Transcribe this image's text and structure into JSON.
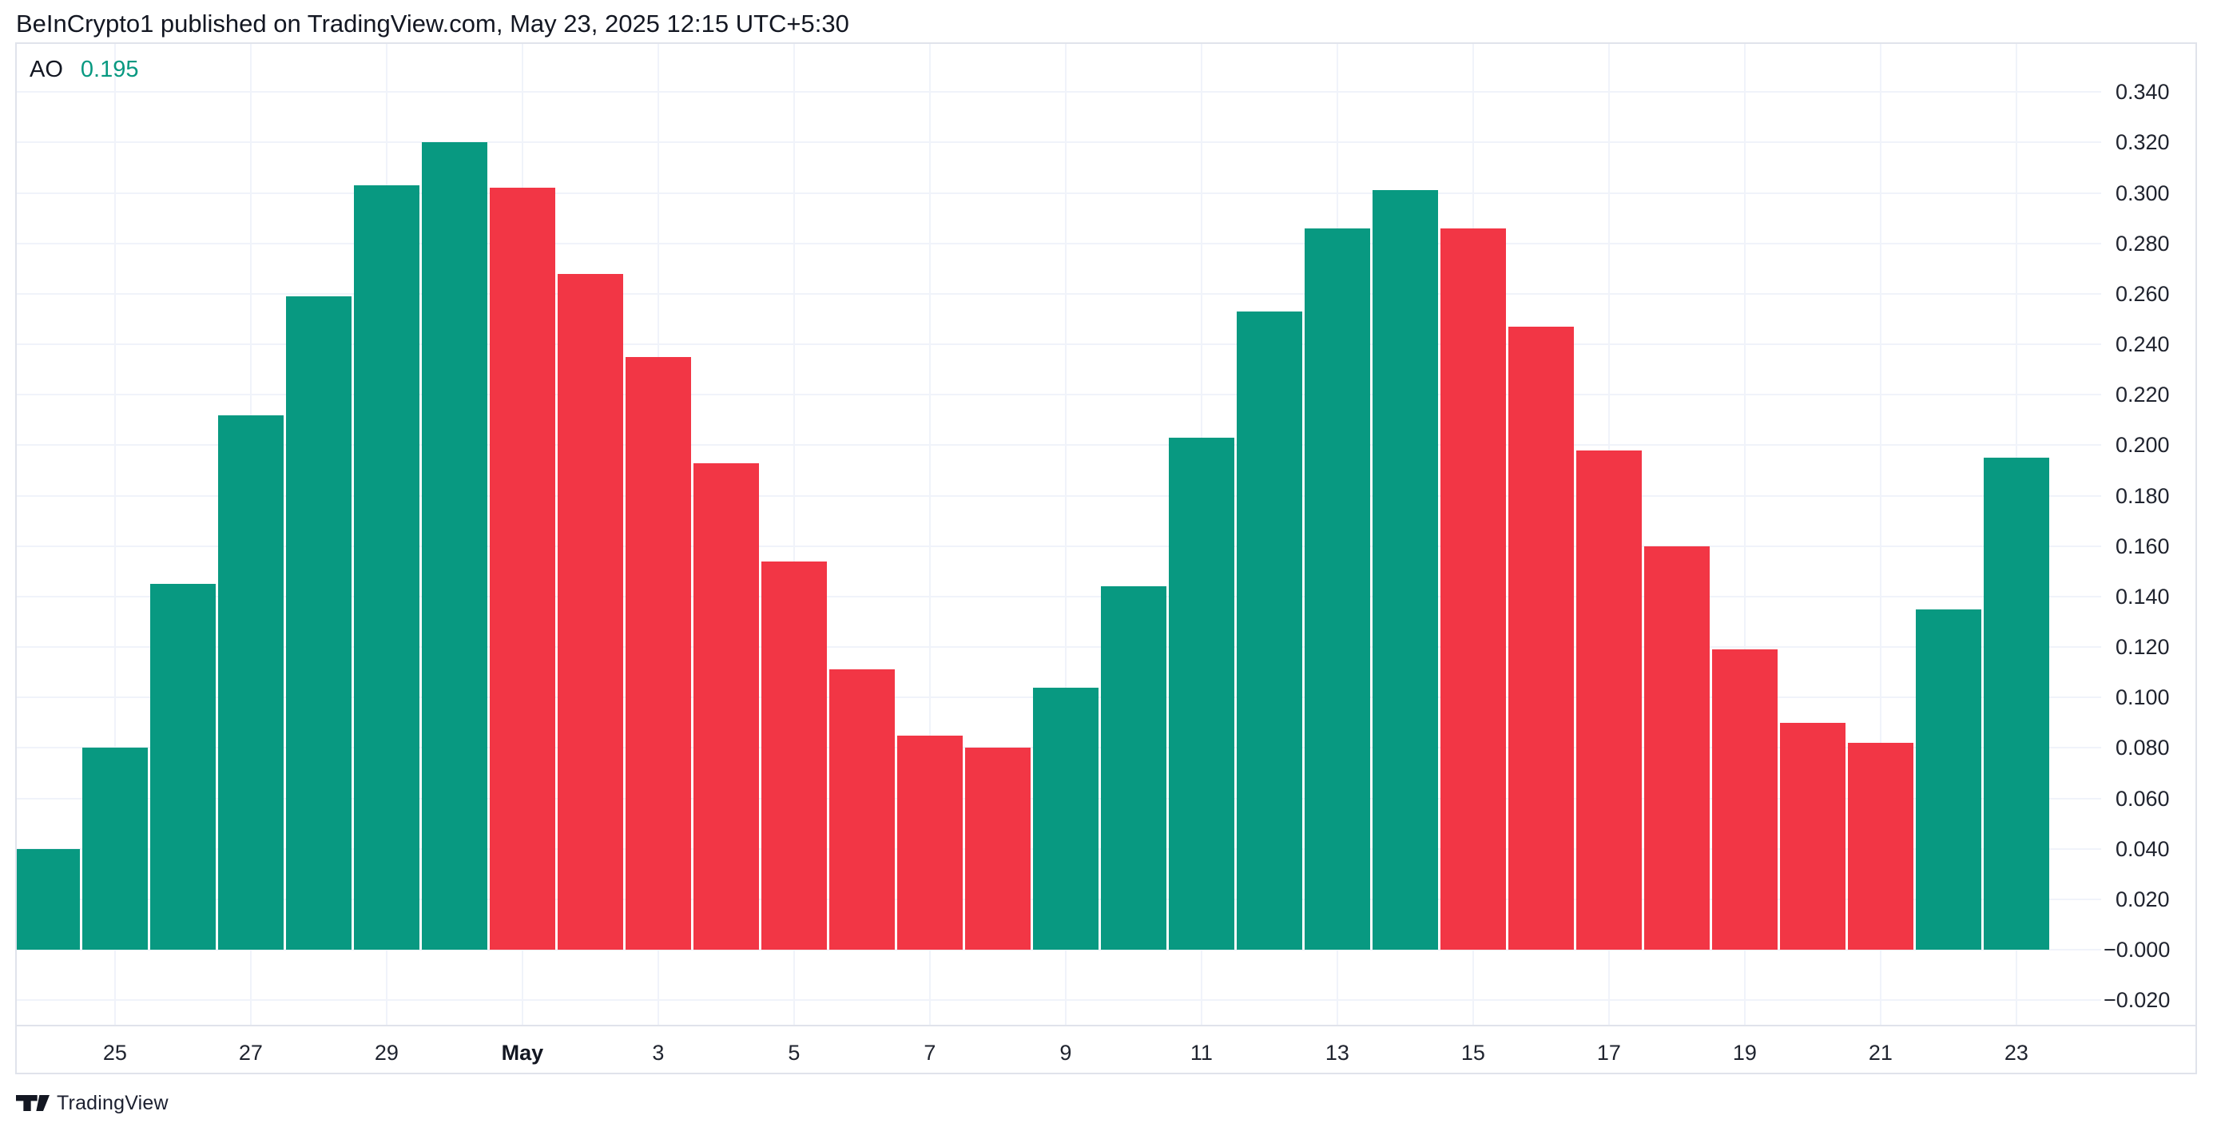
{
  "header": {
    "title": "BeInCrypto1 published on TradingView.com, May 23, 2025 12:15 UTC+5:30"
  },
  "legend": {
    "indicator": "AO",
    "value": "0.195"
  },
  "footer": {
    "brand": "TradingView"
  },
  "colors": {
    "up": "#089981",
    "down": "#F23645",
    "grid": "#f0f3fa",
    "border": "#e0e3eb",
    "background": "#ffffff",
    "text": "#131722"
  },
  "y_axis": {
    "ticks": [
      "0.340",
      "0.320",
      "0.300",
      "0.280",
      "0.260",
      "0.240",
      "0.220",
      "0.200",
      "0.180",
      "0.160",
      "0.140",
      "0.120",
      "0.100",
      "0.080",
      "0.060",
      "0.040",
      "0.020",
      "−0.000",
      "−0.020"
    ]
  },
  "x_axis": {
    "ticks": [
      {
        "label": "25",
        "bold": false
      },
      {
        "label": "27",
        "bold": false
      },
      {
        "label": "29",
        "bold": false
      },
      {
        "label": "May",
        "bold": true
      },
      {
        "label": "3",
        "bold": false
      },
      {
        "label": "5",
        "bold": false
      },
      {
        "label": "7",
        "bold": false
      },
      {
        "label": "9",
        "bold": false
      },
      {
        "label": "11",
        "bold": false
      },
      {
        "label": "13",
        "bold": false
      },
      {
        "label": "15",
        "bold": false
      },
      {
        "label": "17",
        "bold": false
      },
      {
        "label": "19",
        "bold": false
      },
      {
        "label": "21",
        "bold": false
      },
      {
        "label": "23",
        "bold": false
      }
    ]
  },
  "chart_data": {
    "type": "bar",
    "title": "AO",
    "categories": [
      "Apr 24",
      "Apr 25",
      "Apr 26",
      "Apr 27",
      "Apr 28",
      "Apr 29",
      "Apr 30",
      "May 1",
      "May 2",
      "May 3",
      "May 4",
      "May 5",
      "May 6",
      "May 7",
      "May 8",
      "May 9",
      "May 10",
      "May 11",
      "May 12",
      "May 13",
      "May 14",
      "May 15",
      "May 16",
      "May 17",
      "May 18",
      "May 19",
      "May 20",
      "May 21",
      "May 22",
      "May 23"
    ],
    "values": [
      0.04,
      0.08,
      0.145,
      0.212,
      0.259,
      0.303,
      0.32,
      0.302,
      0.268,
      0.235,
      0.193,
      0.154,
      0.111,
      0.085,
      0.08,
      0.104,
      0.144,
      0.203,
      0.253,
      0.286,
      0.301,
      0.286,
      0.247,
      0.198,
      0.16,
      0.119,
      0.09,
      0.082,
      0.135,
      0.195
    ],
    "bar_colors": [
      "up",
      "up",
      "up",
      "up",
      "up",
      "up",
      "up",
      "down",
      "down",
      "down",
      "down",
      "down",
      "down",
      "down",
      "down",
      "up",
      "up",
      "up",
      "up",
      "up",
      "up",
      "down",
      "down",
      "down",
      "down",
      "down",
      "down",
      "down",
      "up",
      "up"
    ],
    "xlabel": "",
    "ylabel": "",
    "ylim": [
      -0.03,
      0.36
    ],
    "y_tick_step": 0.02,
    "grid": true,
    "legend_position": "top-left"
  }
}
